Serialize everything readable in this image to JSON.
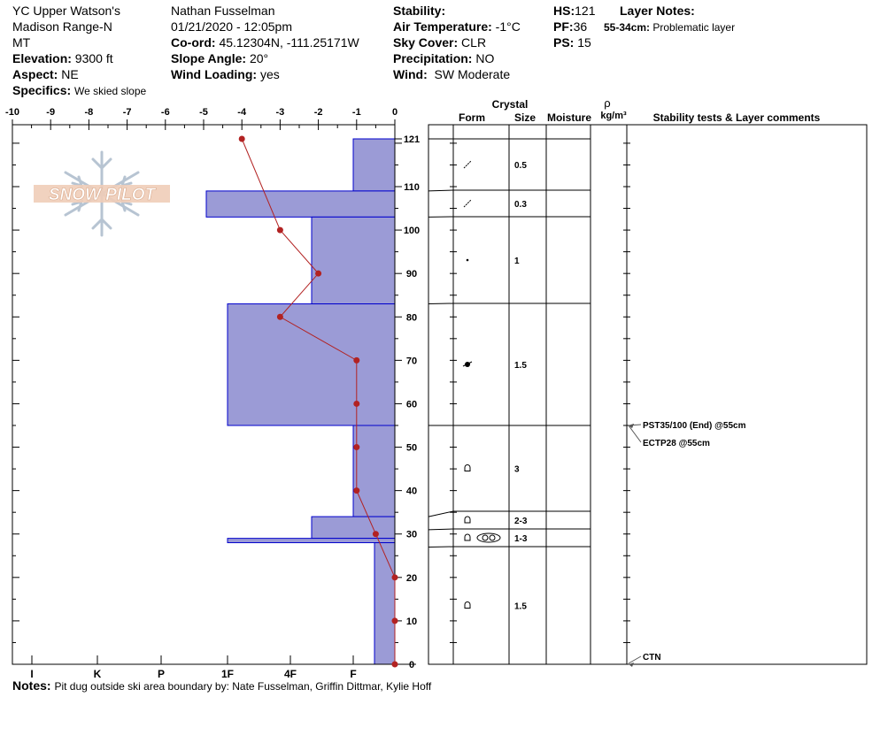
{
  "header": {
    "location": "YC Upper Watson's",
    "range": "Madison Range-N",
    "state": "MT",
    "elevation_label": "Elevation:",
    "elevation_value": "9300 ft",
    "aspect_label": "Aspect:",
    "aspect_value": "NE",
    "specifics_label": "Specifics:",
    "specifics_value": "We skied slope",
    "observer": "Nathan Fusselman",
    "datetime": "01/21/2020 - 12:05pm",
    "coord_label": "Co-ord:",
    "coord_value": "45.12304N, -111.25171W",
    "slope_label": "Slope Angle:",
    "slope_value": "20°",
    "wind_loading_label": "Wind Loading:",
    "wind_loading_value": "yes",
    "stability_label": "Stability:",
    "stability_value": "",
    "air_temp_label": "Air Temperature:",
    "air_temp_value": "-1°C",
    "sky_label": "Sky Cover:",
    "sky_value": "CLR",
    "precip_label": "Precipitation:",
    "precip_value": "NO",
    "wind_label": "Wind:",
    "wind_value": "SW Moderate",
    "hs_label": "HS:",
    "hs_value": "121",
    "pf_label": "PF:",
    "pf_value": "36",
    "ps_label": "PS:",
    "ps_value": "15",
    "layer_notes_label": "Layer Notes:",
    "layer_notes_range": "55-34cm:",
    "layer_notes_value": "Problematic layer"
  },
  "notes_label": "Notes:",
  "notes_value": "Pit dug outside ski area boundary by: Nate Fusselman, Griffin Dittmar, Kylie Hoff",
  "logo_text": "SNOW PILOT",
  "columns": {
    "crystal": "Crystal",
    "form": "Form",
    "size": "Size",
    "moisture": "Moisture",
    "rho": "ρ",
    "density_unit": "kg/m³",
    "stability_comments": "Stability tests & Layer comments"
  },
  "chart_data": {
    "type": "snow-profile",
    "colors": {
      "hardness_fill": "#9b9bd6",
      "hardness_stroke": "#0000cc",
      "temp_line": "#b22222"
    },
    "temp_axis": {
      "ticks": [
        "-10",
        "-9",
        "-8",
        "-7",
        "-6",
        "-5",
        "-4",
        "-3",
        "-2",
        "-1",
        "0"
      ],
      "range": [
        -10,
        0
      ]
    },
    "depth_axis": {
      "ticks": [
        "121",
        "110",
        "100",
        "90",
        "80",
        "70",
        "60",
        "50",
        "40",
        "30",
        "20",
        "10",
        "0"
      ],
      "range": [
        0,
        121
      ]
    },
    "hardness_axis": {
      "labels": [
        "I",
        "K",
        "P",
        "1F",
        "4F",
        "F"
      ]
    },
    "hardness_layers": [
      {
        "top": 121,
        "bottom": 109,
        "hardness": "F"
      },
      {
        "top": 109,
        "bottom": 103,
        "hardness": "1F+"
      },
      {
        "top": 103,
        "bottom": 83,
        "hardness": "4F-"
      },
      {
        "top": 83,
        "bottom": 55,
        "hardness": "1F"
      },
      {
        "top": 55,
        "bottom": 34,
        "hardness": "F"
      },
      {
        "top": 34,
        "bottom": 29,
        "hardness": "4F-"
      },
      {
        "top": 29,
        "bottom": 28,
        "hardness": "1F"
      },
      {
        "top": 28,
        "bottom": 0,
        "hardness": "F-"
      }
    ],
    "temperature_profile": [
      {
        "depth": 121,
        "temp": -4
      },
      {
        "depth": 100,
        "temp": -3
      },
      {
        "depth": 90,
        "temp": -2
      },
      {
        "depth": 80,
        "temp": -3
      },
      {
        "depth": 70,
        "temp": -1
      },
      {
        "depth": 60,
        "temp": -1
      },
      {
        "depth": 50,
        "temp": -1
      },
      {
        "depth": 40,
        "temp": -1
      },
      {
        "depth": 30,
        "temp": -0.5
      },
      {
        "depth": 20,
        "temp": 0
      },
      {
        "depth": 10,
        "temp": 0
      },
      {
        "depth": 0,
        "temp": 0
      }
    ],
    "layers": [
      {
        "top": 121,
        "bottom": 109,
        "form": "decomposing-icon",
        "size": "0.5"
      },
      {
        "top": 109,
        "bottom": 103,
        "form": "decomposing-icon",
        "size": "0.3"
      },
      {
        "top": 103,
        "bottom": 83,
        "form": "rounded-icon",
        "size": "1"
      },
      {
        "top": 83,
        "bottom": 55,
        "form": "mixed-rounded-icon",
        "size": "1.5"
      },
      {
        "top": 55,
        "bottom": 34,
        "form": "faceted-icon",
        "size": "3"
      },
      {
        "top": 34,
        "bottom": 31,
        "form": "faceted-icon",
        "size": "2-3"
      },
      {
        "top": 31,
        "bottom": 27,
        "form": "faceted-icon-depth-hoar",
        "size": "1-3"
      },
      {
        "top": 27,
        "bottom": 0,
        "form": "faceted-icon",
        "size": "1.5"
      }
    ],
    "stability_tests": [
      {
        "depth": 55,
        "label": "PST35/100 (End) @55cm"
      },
      {
        "depth": 55,
        "label": "ECTP28 @55cm"
      },
      {
        "depth": 0,
        "label": "CTN"
      }
    ]
  }
}
